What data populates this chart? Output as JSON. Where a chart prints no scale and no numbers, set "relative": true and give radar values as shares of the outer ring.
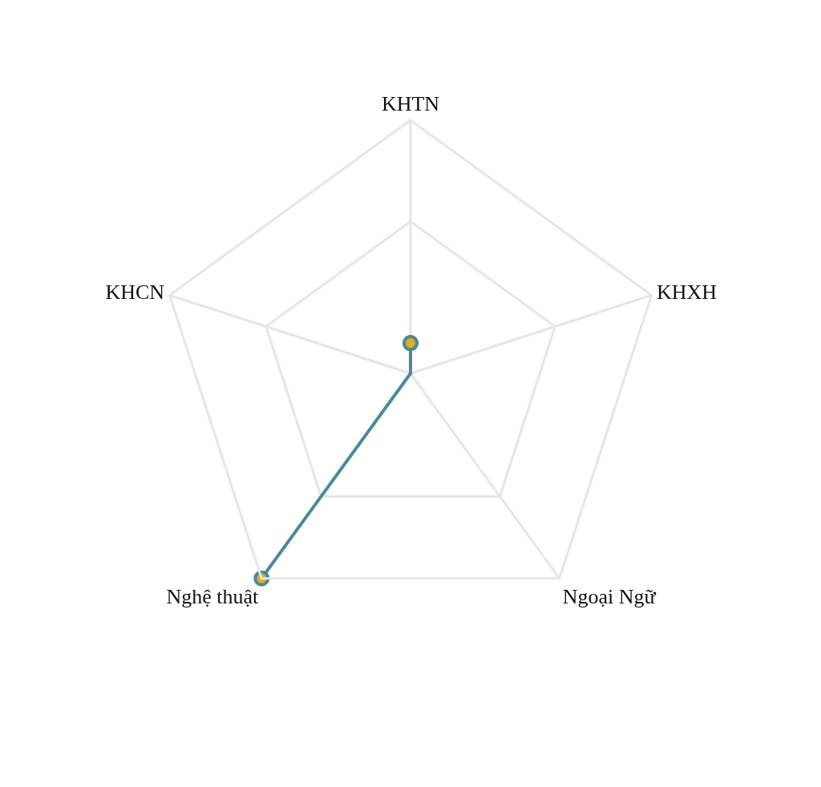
{
  "chart_data": {
    "type": "radar",
    "relative": true,
    "categories": [
      "KHTN",
      "KHXH",
      "Ngoại Ngữ",
      "Nghệ thuật",
      "KHCN"
    ],
    "series": [
      {
        "color": "#4a8a9c",
        "values": [
          0.12,
          0,
          0,
          1,
          0
        ]
      }
    ],
    "grid": true,
    "marker": "circle",
    "line_style": "solid"
  }
}
